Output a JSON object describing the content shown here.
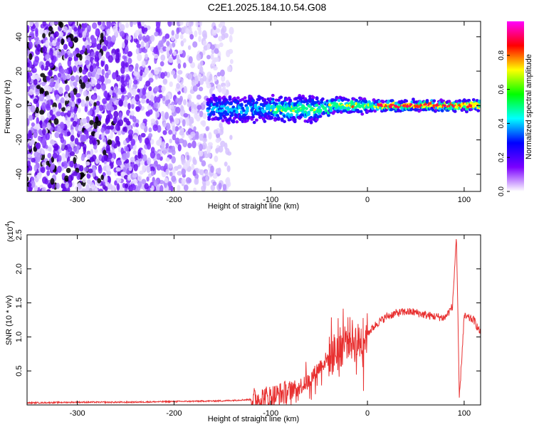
{
  "title": "C2E1.2025.184.10.54.G08",
  "chart_data": [
    {
      "type": "heatmap",
      "xlabel": "Height of straight line (km)",
      "ylabel": "Frequency (Hz)",
      "xlim": [
        -352,
        117
      ],
      "ylim": [
        -50,
        49
      ],
      "xticks": [
        -300,
        -200,
        -100,
        0,
        100
      ],
      "yticks": [
        -40,
        -20,
        0,
        20,
        40
      ],
      "colorbar": {
        "label": "Normalized spectral amplitude",
        "range": [
          0,
          1
        ],
        "ticks": [
          "0.0",
          "0.2",
          "0.4",
          "0.6",
          "0.8"
        ],
        "colors": [
          "#ffffff",
          "#7b00ff",
          "#0000ff",
          "#00ffff",
          "#00ff00",
          "#ffff00",
          "#ff0000",
          "#ff00ff"
        ]
      },
      "description_data": {
        "scattered_region_x": [
          -352,
          -140
        ],
        "scattered_frequency_range": [
          -50,
          49
        ],
        "band_region_x": [
          -165,
          117
        ],
        "band_center_frequency": 0
      }
    },
    {
      "type": "line",
      "xlabel": "Height of straight line (km)",
      "ylabel": "SNR (10 * v/v)",
      "scale_label": "(x10",
      "scale_exp": "4",
      "scale_close": ")",
      "xlim": [
        -352,
        117
      ],
      "ylim": [
        0,
        2.5
      ],
      "xticks": [
        -300,
        -200,
        -100,
        0,
        100
      ],
      "yticks": [
        0.5,
        1.0,
        1.5,
        2.0,
        2.5
      ],
      "series": [
        {
          "color": "#e83030",
          "x": [
            -352,
            -300,
            -250,
            -200,
            -150,
            -120,
            -100,
            -80,
            -60,
            -50,
            -40,
            -30,
            -20,
            -10,
            0,
            10,
            20,
            30,
            40,
            50,
            60,
            70,
            80,
            88,
            92,
            95,
            100,
            110,
            117
          ],
          "values": [
            0.03,
            0.04,
            0.04,
            0.05,
            0.06,
            0.08,
            0.12,
            0.2,
            0.35,
            0.55,
            0.7,
            0.8,
            1.0,
            0.9,
            1.05,
            1.2,
            1.3,
            1.35,
            1.37,
            1.36,
            1.32,
            1.3,
            1.28,
            1.45,
            2.5,
            0.08,
            1.3,
            1.25,
            1.05
          ]
        }
      ]
    }
  ]
}
